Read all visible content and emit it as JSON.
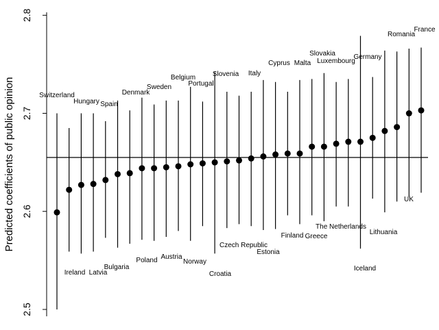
{
  "chart_data": {
    "type": "dot_errorbar",
    "y_label": "Predicted coefficients of public opinion",
    "categories": [
      "Switzerland",
      "Ireland",
      "Hungary",
      "Latvia",
      "Spain",
      "Bulgaria",
      "Denmark",
      "Poland",
      "Sweden",
      "Austria",
      "Belgium",
      "Norway",
      "Portugal",
      "Croatia",
      "Slovenia",
      "Czech Republic",
      "Italy",
      "Estonia",
      "Cyprus",
      "Finland",
      "Malta",
      "Greece",
      "Slovakia",
      "The Netherlands",
      "Luxembourg",
      "Iceland",
      "Germany",
      "Lithuania",
      "Romania",
      "UK",
      "France"
    ],
    "values": [
      2.599,
      2.622,
      2.627,
      2.628,
      2.632,
      2.638,
      2.639,
      2.644,
      2.644,
      2.645,
      2.646,
      2.648,
      2.649,
      2.65,
      2.651,
      2.652,
      2.654,
      2.656,
      2.658,
      2.659,
      2.659,
      2.666,
      2.666,
      2.669,
      2.671,
      2.671,
      2.675,
      2.682,
      2.686,
      2.7,
      2.703
    ],
    "lower": [
      2.5,
      2.559,
      2.557,
      2.559,
      2.573,
      2.563,
      2.567,
      2.571,
      2.57,
      2.574,
      2.58,
      2.57,
      2.585,
      2.557,
      2.583,
      2.587,
      2.585,
      2.581,
      2.582,
      2.596,
      2.587,
      2.596,
      2.59,
      2.605,
      2.605,
      2.562,
      2.613,
      2.599,
      2.61,
      2.615,
      2.619
    ],
    "upper": [
      2.7,
      2.685,
      2.7,
      2.7,
      2.692,
      2.713,
      2.703,
      2.716,
      2.709,
      2.713,
      2.713,
      2.727,
      2.712,
      2.742,
      2.722,
      2.718,
      2.722,
      2.734,
      2.732,
      2.722,
      2.734,
      2.735,
      2.741,
      2.732,
      2.735,
      2.779,
      2.737,
      2.764,
      2.763,
      2.766,
      2.767
    ],
    "reference_line": 2.655,
    "color": "#000000",
    "ylim": [
      2.493,
      2.803
    ],
    "yticks": [
      2.5,
      2.6,
      2.7,
      2.8
    ]
  }
}
